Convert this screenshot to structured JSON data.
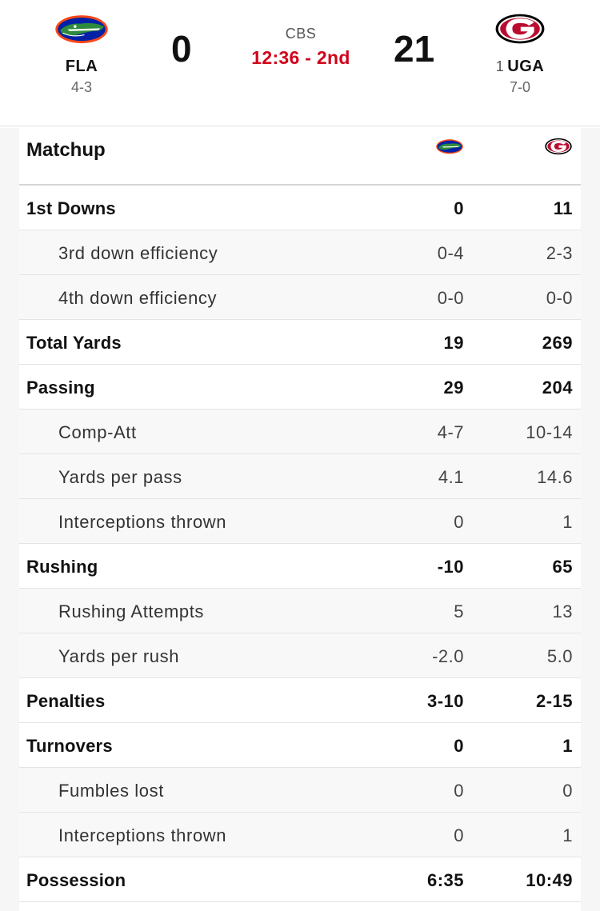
{
  "game": {
    "network": "CBS",
    "clock": "12:36 - 2nd",
    "home": {
      "abbr": "FLA",
      "record": "4-3",
      "score": "0",
      "color": "#0021a5",
      "accent": "#fa4616",
      "logo": "gator-logo"
    },
    "away": {
      "rank": "1",
      "abbr": "UGA",
      "record": "7-0",
      "score": "21",
      "color": "#ba0c2f",
      "logo": "georgia-g-logo"
    }
  },
  "matchup": {
    "title": "Matchup",
    "rows": [
      {
        "label": "1st Downs",
        "home": "0",
        "away": "11",
        "sub": false
      },
      {
        "label": "3rd down efficiency",
        "home": "0-4",
        "away": "2-3",
        "sub": true
      },
      {
        "label": "4th down efficiency",
        "home": "0-0",
        "away": "0-0",
        "sub": true
      },
      {
        "label": "Total Yards",
        "home": "19",
        "away": "269",
        "sub": false
      },
      {
        "label": "Passing",
        "home": "29",
        "away": "204",
        "sub": false
      },
      {
        "label": "Comp-Att",
        "home": "4-7",
        "away": "10-14",
        "sub": true
      },
      {
        "label": "Yards per pass",
        "home": "4.1",
        "away": "14.6",
        "sub": true
      },
      {
        "label": "Interceptions thrown",
        "home": "0",
        "away": "1",
        "sub": true
      },
      {
        "label": "Rushing",
        "home": "-10",
        "away": "65",
        "sub": false
      },
      {
        "label": "Rushing Attempts",
        "home": "5",
        "away": "13",
        "sub": true
      },
      {
        "label": "Yards per rush",
        "home": "-2.0",
        "away": "5.0",
        "sub": true
      },
      {
        "label": "Penalties",
        "home": "3-10",
        "away": "2-15",
        "sub": false
      },
      {
        "label": "Turnovers",
        "home": "0",
        "away": "1",
        "sub": false
      },
      {
        "label": "Fumbles lost",
        "home": "0",
        "away": "0",
        "sub": true
      },
      {
        "label": "Interceptions thrown",
        "home": "0",
        "away": "1",
        "sub": true
      },
      {
        "label": "Possession",
        "home": "6:35",
        "away": "10:49",
        "sub": false
      }
    ]
  }
}
